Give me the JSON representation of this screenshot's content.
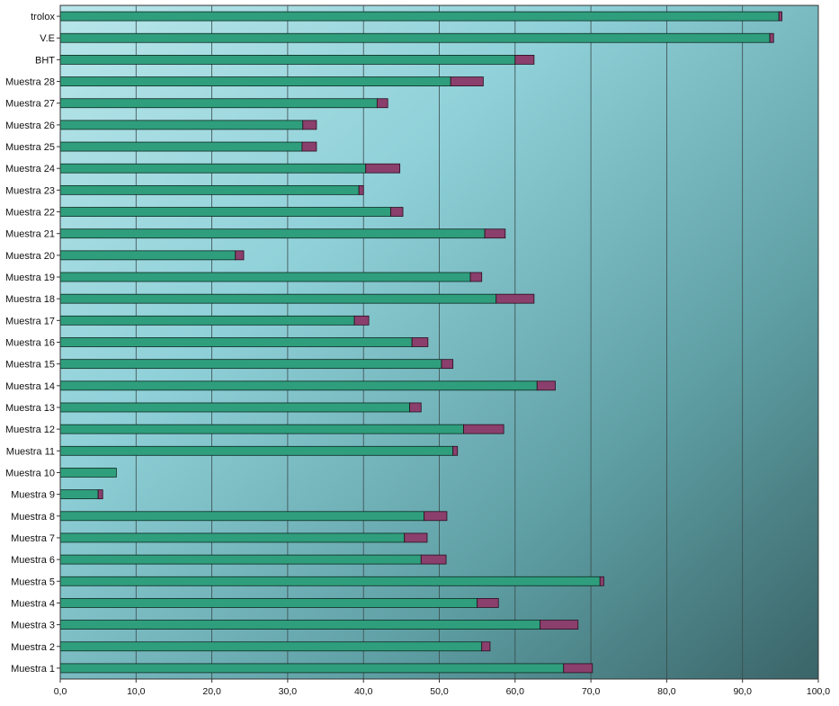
{
  "chart_data": {
    "type": "bar",
    "orientation": "horizontal",
    "stacked": true,
    "title": "",
    "xlabel": "",
    "ylabel": "",
    "xlim": [
      0,
      100
    ],
    "x_ticks": [
      "0,0",
      "10,0",
      "20,0",
      "30,0",
      "40,0",
      "50,0",
      "60,0",
      "70,0",
      "80,0",
      "90,0",
      "100,0"
    ],
    "grid": true,
    "legend": "none",
    "colors": {
      "series_1": "#2f9e7c",
      "series_2": "#8b3f6c",
      "plot_bg_light": "#a9dce3",
      "plot_bg_dark": "#3f6e73"
    },
    "categories": [
      "trolox",
      "V.E",
      "BHT",
      "Muestra 28",
      "Muestra 27",
      "Muestra 26",
      "Muestra 25",
      "Muestra 24",
      "Muestra 23",
      "Muestra 22",
      "Muestra 21",
      "Muestra 20",
      "Muestra 19",
      "Muestra 18",
      "Muestra 17",
      "Muestra 16",
      "Muestra 15",
      "Muestra 14",
      "Muestra 13",
      "Muestra 12",
      "Muestra 11",
      "Muestra 10",
      "Muestra 9",
      "Muestra 8",
      "Muestra 7",
      "Muestra 6",
      "Muestra 5",
      "Muestra 4",
      "Muestra 3",
      "Muestra 2",
      "Muestra 1"
    ],
    "series": [
      {
        "values": [
          94.8,
          93.6,
          60.0,
          51.5,
          41.8,
          32.0,
          31.9,
          40.3,
          39.4,
          43.6,
          56.0,
          23.1,
          54.1,
          57.5,
          38.8,
          46.4,
          50.3,
          62.9,
          46.1,
          53.2,
          51.8,
          7.4,
          5.0,
          48.0,
          45.4,
          47.6,
          71.2,
          55.0,
          63.3,
          55.6,
          66.4
        ]
      },
      {
        "values": [
          0.4,
          0.5,
          2.5,
          4.3,
          1.4,
          1.8,
          1.9,
          4.5,
          0.6,
          1.6,
          2.7,
          1.1,
          1.5,
          5.0,
          1.9,
          2.1,
          1.5,
          2.4,
          1.5,
          5.3,
          0.6,
          0.0,
          0.6,
          3.0,
          3.0,
          3.3,
          0.5,
          2.8,
          5.0,
          1.1,
          3.8
        ]
      }
    ]
  }
}
